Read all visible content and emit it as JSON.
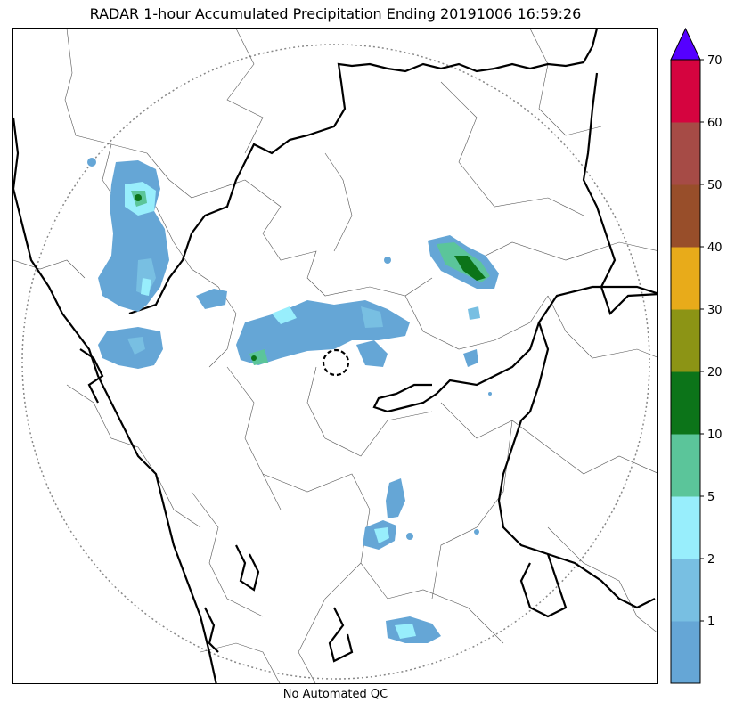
{
  "title": "RADAR 1-hour Accumulated Precipitation Ending 20191006 16:59:26",
  "xlabel": "No Automated QC",
  "colorbar": {
    "ticks": [
      "1",
      "2",
      "5",
      "10",
      "20",
      "30",
      "40",
      "50",
      "60",
      "70"
    ],
    "colors": [
      "#65a6d6",
      "#78bfe2",
      "#98eefc",
      "#5bc59a",
      "#0c7419",
      "#8c9415",
      "#e8ab1a",
      "#984e2a",
      "#a64b46",
      "#d5043f"
    ],
    "extend_color": "#5500ff"
  },
  "map": {
    "land_color": "#ffffff",
    "border_color": "#000000",
    "district_color": "#444444",
    "range_ring_color": "#888888"
  },
  "precip_colors": {
    "light": "#65a6d6",
    "mid": "#78bfe2",
    "cyan": "#98eefc",
    "teal": "#5bc59a",
    "green": "#0c7419"
  }
}
